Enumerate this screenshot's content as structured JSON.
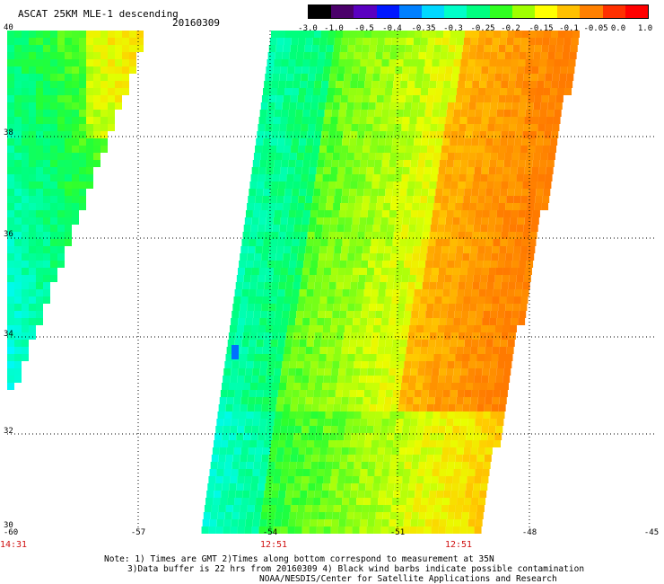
{
  "header": {
    "title": "ASCAT 25KM MLE-1 descending",
    "date": "20160309"
  },
  "colorbar": {
    "labels": [
      "-3.0",
      "-1.0",
      "-0.5",
      "-0.4",
      "-0.35",
      "-0.3",
      "-0.25",
      "-0.2",
      "-0.15",
      "-0.1",
      "-0.05",
      "0.0",
      "1.0"
    ],
    "colors": [
      "#000000",
      "#4a006a",
      "#5a00c0",
      "#0018ff",
      "#0080ff",
      "#00d8ff",
      "#00ffc8",
      "#00ff80",
      "#30ff20",
      "#a0ff00",
      "#ffff00",
      "#ffc000",
      "#ff8000",
      "#ff3000",
      "#ff0000"
    ]
  },
  "map": {
    "lat_labels": [
      "40",
      "38",
      "36",
      "34",
      "32",
      "30"
    ],
    "lon_labels": [
      "-60",
      "-57",
      "-54",
      "-51",
      "-48",
      "-45"
    ],
    "time_labels": [
      "14:31",
      "12:51",
      "12:51"
    ]
  },
  "notes": {
    "line1": "Note: 1) Times are GMT 2)Times along bottom correspond to measurement at 35N",
    "line2": "3)Data buffer is 22 hrs from 20160309 4) Black wind barbs indicate possible contamination",
    "line3": "NOAA/NESDIS/Center for Satellite Applications and Research"
  }
}
